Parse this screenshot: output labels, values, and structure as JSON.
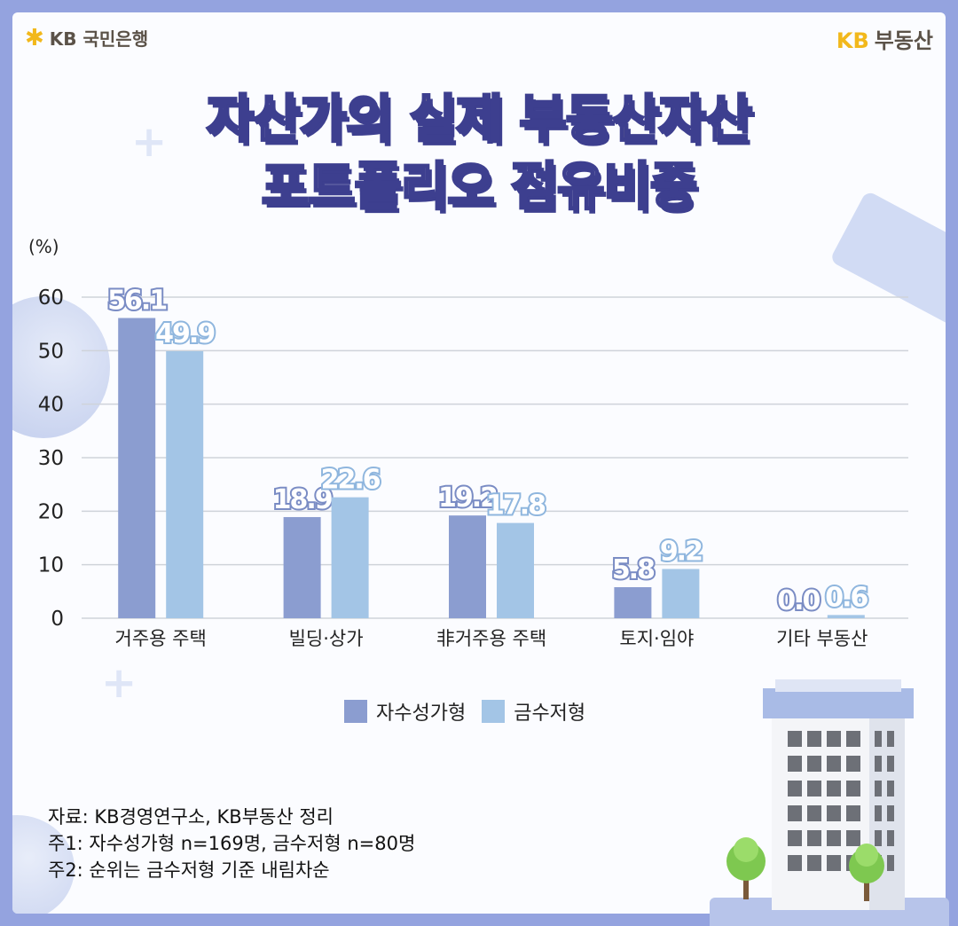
{
  "brand": {
    "left_logo": "KB 국민은행",
    "right_logo_kb": "KB",
    "right_logo_text": "부동산"
  },
  "title": {
    "line1_pre": "자산가의 ",
    "line1_highlight": "실제 부동산자산",
    "line2": "포트폴리오 점유비중"
  },
  "colors": {
    "series1": "#8b9dd0",
    "series2": "#a3c5e6",
    "border": "#94a3df",
    "title_outline": "#3d3f8f",
    "highlight": "#ffe98a"
  },
  "chart_data": {
    "type": "bar",
    "unit_label": "(%)",
    "categories": [
      "거주용 주택",
      "빌딩·상가",
      "非거주용 주택",
      "토지·임야",
      "기타 부동산"
    ],
    "series": [
      {
        "name": "자수성가형",
        "values": [
          56.1,
          18.9,
          19.2,
          5.8,
          0.0
        ],
        "labels": [
          "56.1",
          "18.9",
          "19.2",
          "5.8",
          "0.0"
        ]
      },
      {
        "name": "금수저형",
        "values": [
          49.9,
          22.6,
          17.8,
          9.2,
          0.6
        ],
        "labels": [
          "49.9",
          "22.6",
          "17.8",
          "9.2",
          "0.6"
        ]
      }
    ],
    "ylim": [
      0,
      60
    ],
    "yticks": [
      "0",
      "10",
      "20",
      "30",
      "40",
      "50",
      "60"
    ],
    "grid": true,
    "legend_position": "bottom-center"
  },
  "notes": [
    "자료: KB경영연구소, KB부동산 정리",
    "주1: 자수성가형 n=169명, 금수저형 n=80명",
    "주2: 순위는 금수저형 기준 내림차순"
  ]
}
